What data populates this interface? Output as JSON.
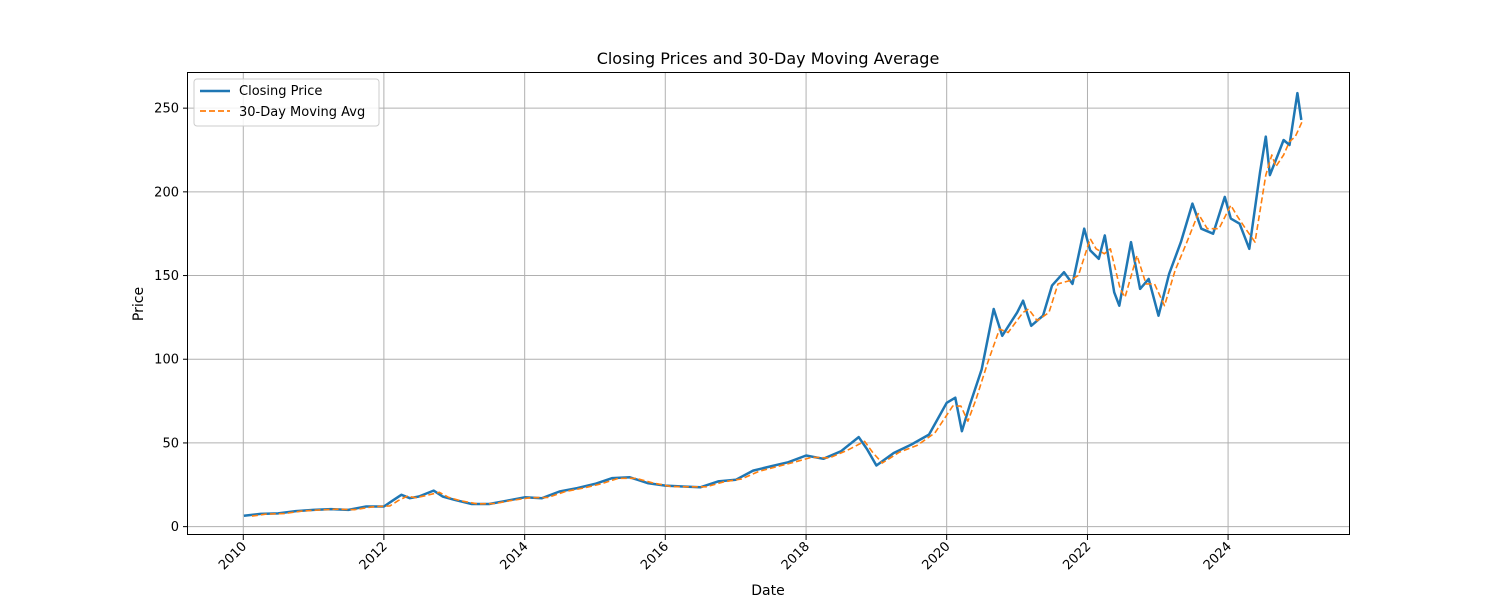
{
  "chart_data": {
    "type": "line",
    "title": "Closing Prices and 30-Day Moving Average",
    "xlabel": "Date",
    "ylabel": "Price",
    "xlim": [
      "2009-03-20",
      "2025-09-25"
    ],
    "ylim": [
      -5,
      271
    ],
    "x_ticks": [
      "2010",
      "2012",
      "2014",
      "2016",
      "2018",
      "2020",
      "2022",
      "2024"
    ],
    "y_ticks": [
      "0",
      "50",
      "100",
      "150",
      "200",
      "250"
    ],
    "grid": true,
    "legend_position": "top-left",
    "series": [
      {
        "name": "Closing Price",
        "style": "solid",
        "color": "#1f77b4",
        "points": [
          [
            "2010-01-04",
            6.5
          ],
          [
            "2010-04-01",
            7.6
          ],
          [
            "2010-07-01",
            7.9
          ],
          [
            "2010-10-01",
            9.3
          ],
          [
            "2011-01-01",
            10.0
          ],
          [
            "2011-04-01",
            10.5
          ],
          [
            "2011-07-01",
            10.0
          ],
          [
            "2011-10-01",
            12.0
          ],
          [
            "2012-01-01",
            12.0
          ],
          [
            "2012-02-15",
            15.5
          ],
          [
            "2012-04-01",
            19.0
          ],
          [
            "2012-05-15",
            17.0
          ],
          [
            "2012-07-01",
            18.0
          ],
          [
            "2012-09-15",
            21.5
          ],
          [
            "2012-11-01",
            18.0
          ],
          [
            "2013-01-01",
            16.0
          ],
          [
            "2013-04-01",
            13.5
          ],
          [
            "2013-07-01",
            13.5
          ],
          [
            "2013-10-01",
            15.5
          ],
          [
            "2014-01-01",
            17.5
          ],
          [
            "2014-04-01",
            17.0
          ],
          [
            "2014-07-01",
            21.0
          ],
          [
            "2014-10-01",
            23.0
          ],
          [
            "2015-01-01",
            25.5
          ],
          [
            "2015-04-01",
            29.0
          ],
          [
            "2015-07-01",
            29.5
          ],
          [
            "2015-10-01",
            26.0
          ],
          [
            "2016-01-01",
            24.5
          ],
          [
            "2016-04-01",
            24.0
          ],
          [
            "2016-07-01",
            23.5
          ],
          [
            "2016-10-01",
            27.0
          ],
          [
            "2017-01-01",
            28.0
          ],
          [
            "2017-04-01",
            33.5
          ],
          [
            "2017-07-01",
            36.0
          ],
          [
            "2017-10-01",
            38.5
          ],
          [
            "2018-01-01",
            42.5
          ],
          [
            "2018-04-01",
            40.5
          ],
          [
            "2018-07-01",
            45.0
          ],
          [
            "2018-10-01",
            53.5
          ],
          [
            "2018-11-15",
            46.0
          ],
          [
            "2019-01-01",
            36.5
          ],
          [
            "2019-04-01",
            44.0
          ],
          [
            "2019-07-01",
            49.0
          ],
          [
            "2019-10-01",
            55.0
          ],
          [
            "2020-01-01",
            74.0
          ],
          [
            "2020-02-15",
            77.0
          ],
          [
            "2020-03-20",
            57.0
          ],
          [
            "2020-05-01",
            73.0
          ],
          [
            "2020-07-01",
            94.0
          ],
          [
            "2020-09-01",
            130.0
          ],
          [
            "2020-10-15",
            114.0
          ],
          [
            "2021-01-01",
            128.0
          ],
          [
            "2021-02-01",
            135.0
          ],
          [
            "2021-03-15",
            120.0
          ],
          [
            "2021-05-15",
            126.0
          ],
          [
            "2021-07-01",
            144.0
          ],
          [
            "2021-09-01",
            152.0
          ],
          [
            "2021-10-15",
            145.0
          ],
          [
            "2021-12-15",
            178.0
          ],
          [
            "2022-01-15",
            165.0
          ],
          [
            "2022-03-01",
            160.0
          ],
          [
            "2022-04-01",
            174.0
          ],
          [
            "2022-05-20",
            140.0
          ],
          [
            "2022-06-15",
            132.0
          ],
          [
            "2022-08-15",
            170.0
          ],
          [
            "2022-10-01",
            142.0
          ],
          [
            "2022-11-15",
            148.0
          ],
          [
            "2023-01-05",
            126.0
          ],
          [
            "2023-03-01",
            151.0
          ],
          [
            "2023-05-01",
            170.0
          ],
          [
            "2023-06-30",
            193.0
          ],
          [
            "2023-08-15",
            178.0
          ],
          [
            "2023-10-15",
            175.0
          ],
          [
            "2023-12-15",
            197.0
          ],
          [
            "2024-01-15",
            184.0
          ],
          [
            "2024-03-01",
            181.0
          ],
          [
            "2024-04-20",
            166.0
          ],
          [
            "2024-06-15",
            212.0
          ],
          [
            "2024-07-15",
            233.0
          ],
          [
            "2024-08-05",
            210.0
          ],
          [
            "2024-09-15",
            222.0
          ],
          [
            "2024-10-15",
            231.0
          ],
          [
            "2024-11-15",
            228.0
          ],
          [
            "2024-12-26",
            259.0
          ],
          [
            "2025-01-15",
            243.0
          ]
        ]
      },
      {
        "name": "30-Day Moving Avg",
        "style": "dashed",
        "color": "#ff7f0e",
        "points": [
          [
            "2010-02-15",
            6.3
          ],
          [
            "2010-05-01",
            7.5
          ],
          [
            "2010-08-01",
            7.8
          ],
          [
            "2010-11-01",
            9.3
          ],
          [
            "2011-02-01",
            10.0
          ],
          [
            "2011-05-01",
            10.4
          ],
          [
            "2011-08-01",
            10.1
          ],
          [
            "2011-11-01",
            11.8
          ],
          [
            "2012-02-01",
            12.4
          ],
          [
            "2012-03-15",
            15.5
          ],
          [
            "2012-05-01",
            18.2
          ],
          [
            "2012-06-15",
            17.3
          ],
          [
            "2012-08-01",
            18.4
          ],
          [
            "2012-10-15",
            20.5
          ],
          [
            "2012-12-01",
            17.5
          ],
          [
            "2013-02-01",
            15.5
          ],
          [
            "2013-05-01",
            13.6
          ],
          [
            "2013-08-01",
            13.8
          ],
          [
            "2013-11-01",
            15.8
          ],
          [
            "2014-02-01",
            17.3
          ],
          [
            "2014-05-01",
            17.4
          ],
          [
            "2014-08-01",
            21.0
          ],
          [
            "2014-11-01",
            23.0
          ],
          [
            "2015-02-01",
            25.5
          ],
          [
            "2015-05-01",
            28.8
          ],
          [
            "2015-08-01",
            28.9
          ],
          [
            "2015-11-01",
            26.0
          ],
          [
            "2016-02-01",
            24.0
          ],
          [
            "2016-05-01",
            23.8
          ],
          [
            "2016-08-01",
            23.8
          ],
          [
            "2016-11-01",
            26.8
          ],
          [
            "2017-02-01",
            28.5
          ],
          [
            "2017-05-01",
            33.0
          ],
          [
            "2017-08-01",
            35.8
          ],
          [
            "2017-11-01",
            38.5
          ],
          [
            "2018-02-01",
            41.5
          ],
          [
            "2018-05-01",
            41.0
          ],
          [
            "2018-08-01",
            45.5
          ],
          [
            "2018-11-01",
            51.0
          ],
          [
            "2018-12-15",
            44.0
          ],
          [
            "2019-02-01",
            38.0
          ],
          [
            "2019-05-01",
            44.5
          ],
          [
            "2019-08-01",
            48.5
          ],
          [
            "2019-11-01",
            56.0
          ],
          [
            "2020-02-01",
            72.0
          ],
          [
            "2020-03-15",
            72.0
          ],
          [
            "2020-04-20",
            63.0
          ],
          [
            "2020-06-01",
            76.0
          ],
          [
            "2020-08-01",
            98.0
          ],
          [
            "2020-10-01",
            118.0
          ],
          [
            "2020-11-15",
            116.0
          ],
          [
            "2021-02-01",
            128.0
          ],
          [
            "2021-03-01",
            130.0
          ],
          [
            "2021-04-15",
            123.0
          ],
          [
            "2021-06-15",
            128.0
          ],
          [
            "2021-08-01",
            145.0
          ],
          [
            "2021-10-01",
            147.0
          ],
          [
            "2021-11-15",
            150.0
          ],
          [
            "2022-01-15",
            172.0
          ],
          [
            "2022-02-15",
            166.0
          ],
          [
            "2022-03-30",
            163.0
          ],
          [
            "2022-04-30",
            166.0
          ],
          [
            "2022-06-20",
            142.0
          ],
          [
            "2022-07-15",
            137.0
          ],
          [
            "2022-09-15",
            162.0
          ],
          [
            "2022-11-01",
            145.0
          ],
          [
            "2022-12-15",
            145.0
          ],
          [
            "2023-02-05",
            132.0
          ],
          [
            "2023-04-01",
            153.0
          ],
          [
            "2023-06-01",
            170.0
          ],
          [
            "2023-07-30",
            187.0
          ],
          [
            "2023-09-15",
            178.0
          ],
          [
            "2023-11-15",
            178.0
          ],
          [
            "2024-01-15",
            192.0
          ],
          [
            "2024-02-15",
            186.0
          ],
          [
            "2024-04-01",
            178.0
          ],
          [
            "2024-05-20",
            170.0
          ],
          [
            "2024-07-15",
            210.0
          ],
          [
            "2024-08-15",
            222.0
          ],
          [
            "2024-09-05",
            215.0
          ],
          [
            "2024-10-15",
            222.0
          ],
          [
            "2024-11-15",
            230.0
          ],
          [
            "2024-12-15",
            233.0
          ],
          [
            "2025-01-20",
            242.0
          ]
        ]
      }
    ]
  }
}
